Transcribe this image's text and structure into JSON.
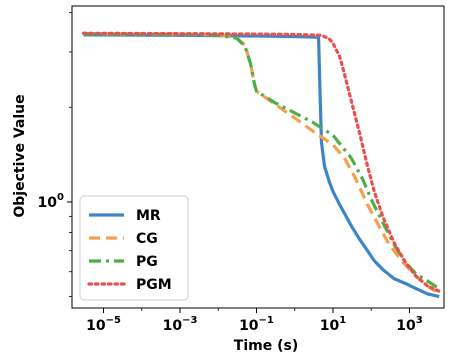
{
  "chart_data": {
    "type": "line",
    "xlabel": "Time (s)",
    "ylabel": "Objective Value",
    "xscale": "log",
    "yscale": "log",
    "xlim": [
      1.5e-06,
      8000
    ],
    "ylim": [
      0.46,
      4.2
    ],
    "xticks": [
      {
        "value": 1e-05,
        "base": "10",
        "exp": "−5"
      },
      {
        "value": 0.001,
        "base": "10",
        "exp": "−3"
      },
      {
        "value": 0.1,
        "base": "10",
        "exp": "−1"
      },
      {
        "value": 10,
        "base": "10",
        "exp": "1"
      },
      {
        "value": 1000,
        "base": "10",
        "exp": "3"
      }
    ],
    "yticks": [
      {
        "value": 1,
        "label": "10",
        "exp": "0"
      }
    ],
    "legend_position": "lower-left",
    "series": [
      {
        "name": "MR",
        "color": "#3d85c6",
        "style": "solid",
        "points": [
          [
            3e-06,
            3.4
          ],
          [
            0.001,
            3.39
          ],
          [
            0.1,
            3.37
          ],
          [
            1,
            3.36
          ],
          [
            4.2,
            3.34
          ],
          [
            4.6,
            2.2
          ],
          [
            5.0,
            1.55
          ],
          [
            6,
            1.3
          ],
          [
            8,
            1.16
          ],
          [
            10,
            1.08
          ],
          [
            15,
            0.98
          ],
          [
            20,
            0.92
          ],
          [
            30,
            0.84
          ],
          [
            50,
            0.76
          ],
          [
            80,
            0.7
          ],
          [
            120,
            0.65
          ],
          [
            200,
            0.61
          ],
          [
            400,
            0.57
          ],
          [
            800,
            0.55
          ],
          [
            1500,
            0.53
          ],
          [
            3000,
            0.51
          ],
          [
            6000,
            0.5
          ]
        ]
      },
      {
        "name": "CG",
        "color": "#f5a04a",
        "style": "dashed",
        "points": [
          [
            3e-06,
            3.43
          ],
          [
            0.001,
            3.42
          ],
          [
            0.01,
            3.4
          ],
          [
            0.03,
            3.33
          ],
          [
            0.05,
            3.15
          ],
          [
            0.07,
            2.75
          ],
          [
            0.09,
            2.35
          ],
          [
            0.1,
            2.25
          ],
          [
            0.3,
            2.05
          ],
          [
            1,
            1.85
          ],
          [
            3,
            1.68
          ],
          [
            10,
            1.52
          ],
          [
            20,
            1.38
          ],
          [
            40,
            1.18
          ],
          [
            80,
            0.98
          ],
          [
            150,
            0.85
          ],
          [
            300,
            0.73
          ],
          [
            700,
            0.64
          ],
          [
            1500,
            0.58
          ],
          [
            3000,
            0.54
          ],
          [
            6000,
            0.51
          ]
        ]
      },
      {
        "name": "PG",
        "color": "#4daf4a",
        "style": "dashdot",
        "points": [
          [
            3e-06,
            3.42
          ],
          [
            0.001,
            3.41
          ],
          [
            0.01,
            3.39
          ],
          [
            0.03,
            3.32
          ],
          [
            0.05,
            3.13
          ],
          [
            0.07,
            2.75
          ],
          [
            0.09,
            2.35
          ],
          [
            0.1,
            2.25
          ],
          [
            0.3,
            2.07
          ],
          [
            1,
            1.92
          ],
          [
            3,
            1.79
          ],
          [
            10,
            1.63
          ],
          [
            30,
            1.38
          ],
          [
            60,
            1.18
          ],
          [
            100,
            1.02
          ],
          [
            200,
            0.86
          ],
          [
            400,
            0.73
          ],
          [
            800,
            0.64
          ],
          [
            1500,
            0.59
          ],
          [
            3000,
            0.56
          ],
          [
            6000,
            0.53
          ]
        ]
      },
      {
        "name": "PGM",
        "color": "#e8504f",
        "style": "dotted",
        "points": [
          [
            3e-06,
            3.44
          ],
          [
            0.001,
            3.43
          ],
          [
            0.1,
            3.42
          ],
          [
            1,
            3.41
          ],
          [
            5,
            3.39
          ],
          [
            8,
            3.3
          ],
          [
            10,
            3.2
          ],
          [
            15,
            2.9
          ],
          [
            20,
            2.55
          ],
          [
            30,
            2.1
          ],
          [
            50,
            1.65
          ],
          [
            80,
            1.3
          ],
          [
            120,
            1.08
          ],
          [
            200,
            0.9
          ],
          [
            400,
            0.74
          ],
          [
            800,
            0.64
          ],
          [
            1500,
            0.58
          ],
          [
            3000,
            0.54
          ],
          [
            6000,
            0.52
          ]
        ]
      }
    ]
  }
}
